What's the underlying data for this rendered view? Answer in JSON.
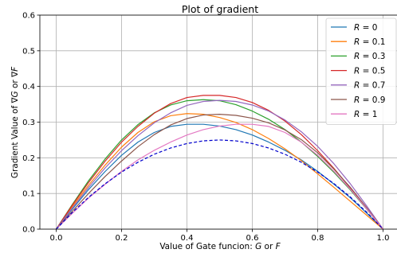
{
  "chart_data": {
    "type": "line",
    "title": "Plot of gradient",
    "xlabel_parts": [
      "Value of Gate funcion: ",
      "G",
      " or ",
      "F"
    ],
    "ylabel_parts": [
      "Gradient Value of ∇",
      "G",
      " or ∇",
      "F"
    ],
    "xlim": [
      -0.05,
      1.05
    ],
    "ylim": [
      0,
      0.6
    ],
    "x_ticks": [
      0.0,
      0.2,
      0.4,
      0.6,
      0.8,
      1.0
    ],
    "x_tick_labels": [
      "0.0",
      "0.2",
      "0.4",
      "0.6",
      "0.8",
      "1.0"
    ],
    "y_ticks": [
      0.0,
      0.1,
      0.2,
      0.3,
      0.4,
      0.5,
      0.6
    ],
    "y_tick_labels": [
      "0.0",
      "0.1",
      "0.2",
      "0.3",
      "0.4",
      "0.5",
      "0.6"
    ],
    "grid": true,
    "legend_position": "top-right",
    "x": [
      0.0,
      0.05,
      0.1,
      0.15,
      0.2,
      0.25,
      0.3,
      0.35,
      0.4,
      0.45,
      0.5,
      0.55,
      0.6,
      0.65,
      0.7,
      0.75,
      0.8,
      0.85,
      0.9,
      0.95,
      1.0
    ],
    "series": [
      {
        "name": "R = 0",
        "label_italic": "R",
        "label_rest": " = 0",
        "color": "#1f77b4",
        "style": "solid",
        "values": [
          0.0,
          0.057,
          0.112,
          0.162,
          0.207,
          0.244,
          0.271,
          0.288,
          0.294,
          0.294,
          0.289,
          0.279,
          0.264,
          0.244,
          0.221,
          0.194,
          0.162,
          0.126,
          0.088,
          0.045,
          0.0
        ]
      },
      {
        "name": "R = 0.1",
        "label_italic": "R",
        "label_rest": " = 0.1",
        "color": "#ff7f0e",
        "style": "solid",
        "values": [
          0.0,
          0.064,
          0.124,
          0.18,
          0.23,
          0.271,
          0.301,
          0.318,
          0.324,
          0.322,
          0.313,
          0.299,
          0.279,
          0.254,
          0.225,
          0.192,
          0.155,
          0.117,
          0.078,
          0.039,
          0.0
        ]
      },
      {
        "name": "R = 0.3",
        "label_italic": "R",
        "label_rest": " = 0.3",
        "color": "#2ca02c",
        "style": "solid",
        "values": [
          0.0,
          0.07,
          0.137,
          0.197,
          0.25,
          0.293,
          0.326,
          0.348,
          0.36,
          0.363,
          0.36,
          0.349,
          0.331,
          0.308,
          0.279,
          0.244,
          0.204,
          0.159,
          0.11,
          0.056,
          0.0
        ]
      },
      {
        "name": "R = 0.5",
        "label_italic": "R",
        "label_rest": " = 0.5",
        "color": "#d62728",
        "style": "solid",
        "values": [
          0.0,
          0.068,
          0.132,
          0.191,
          0.244,
          0.288,
          0.325,
          0.352,
          0.369,
          0.375,
          0.375,
          0.369,
          0.355,
          0.333,
          0.303,
          0.265,
          0.22,
          0.17,
          0.115,
          0.058,
          0.0
        ]
      },
      {
        "name": "R = 0.7",
        "label_italic": "R",
        "label_rest": " = 0.7",
        "color": "#9467bd",
        "style": "solid",
        "values": [
          0.0,
          0.06,
          0.118,
          0.172,
          0.22,
          0.262,
          0.298,
          0.326,
          0.347,
          0.358,
          0.361,
          0.358,
          0.348,
          0.331,
          0.306,
          0.273,
          0.232,
          0.183,
          0.127,
          0.065,
          0.0
        ]
      },
      {
        "name": "R = 0.9",
        "label_italic": "R",
        "label_rest": " = 0.9",
        "color": "#8c564b",
        "style": "solid",
        "values": [
          0.0,
          0.051,
          0.101,
          0.148,
          0.191,
          0.231,
          0.265,
          0.292,
          0.31,
          0.32,
          0.322,
          0.319,
          0.311,
          0.298,
          0.278,
          0.251,
          0.214,
          0.168,
          0.117,
          0.06,
          0.0
        ]
      },
      {
        "name": "R = 1",
        "label_italic": "R",
        "label_rest": " = 1",
        "color": "#e377c2",
        "style": "solid",
        "values": [
          0.0,
          0.045,
          0.088,
          0.126,
          0.162,
          0.194,
          0.221,
          0.244,
          0.264,
          0.279,
          0.289,
          0.294,
          0.294,
          0.288,
          0.271,
          0.244,
          0.207,
          0.162,
          0.112,
          0.057,
          0.0
        ]
      },
      {
        "name": "",
        "label_italic": "",
        "label_rest": "",
        "color": "#0000cc",
        "style": "dashed",
        "in_legend": false,
        "values": [
          0.0,
          0.0475,
          0.09,
          0.1275,
          0.16,
          0.1875,
          0.21,
          0.2275,
          0.24,
          0.2475,
          0.25,
          0.2475,
          0.24,
          0.2275,
          0.21,
          0.1875,
          0.16,
          0.1275,
          0.09,
          0.0475,
          0.0
        ]
      }
    ]
  }
}
